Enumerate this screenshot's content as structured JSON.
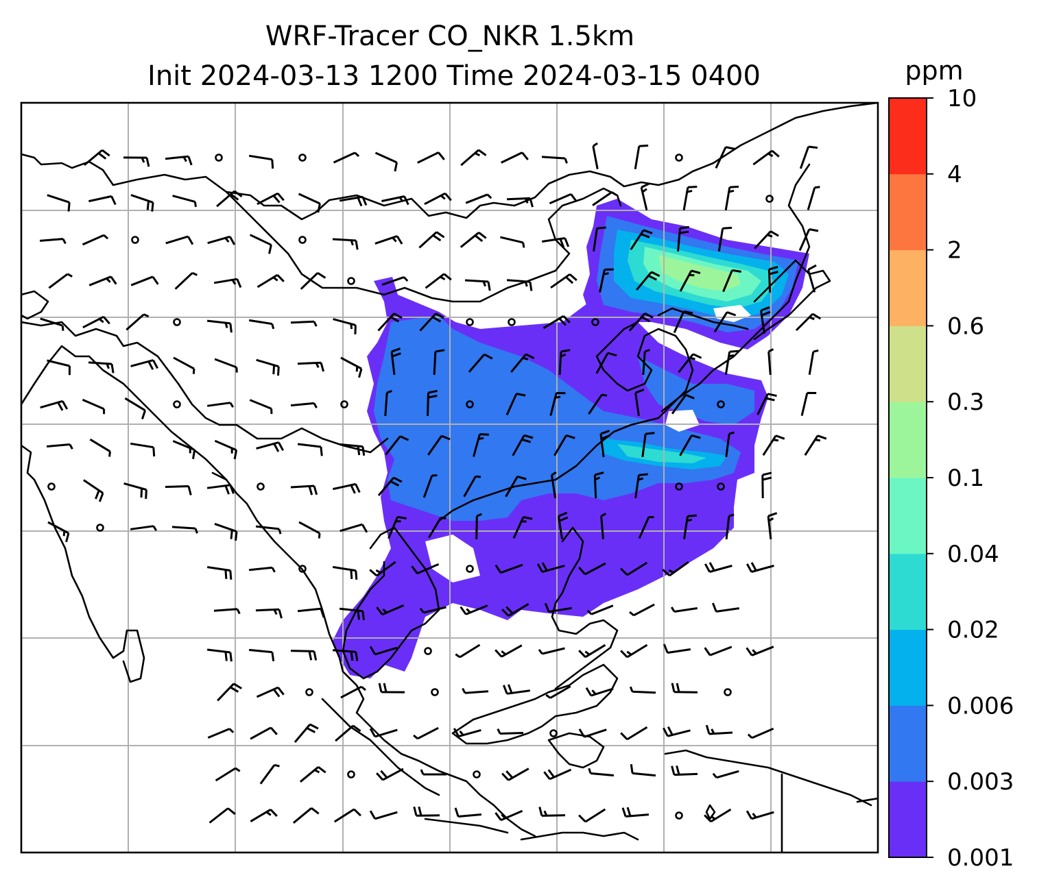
{
  "title": {
    "line1": "WRF-Tracer CO_NKR 1.5km",
    "line2": "Init 2024-03-13 1200 Time 2024-03-15 0400"
  },
  "colorbar": {
    "unit": "ppm",
    "levels": [
      "0.001",
      "0.003",
      "0.006",
      "0.02",
      "0.04",
      "0.1",
      "0.3",
      "0.6",
      "2",
      "4",
      "10"
    ],
    "colors": [
      "#6a2ff7",
      "#3278f0",
      "#04b1ec",
      "#2edbd2",
      "#6bf6c4",
      "#9df59b",
      "#cfe08a",
      "#fdb163",
      "#fd7640",
      "#fd2d1c"
    ]
  },
  "map": {
    "gridlines": true,
    "overlays": [
      "coastlines",
      "wind-barbs",
      "tracer-concentration"
    ],
    "plume_levels_shown": [
      "0.001",
      "0.003",
      "0.006",
      "0.02",
      "0.04",
      "0.1"
    ]
  }
}
